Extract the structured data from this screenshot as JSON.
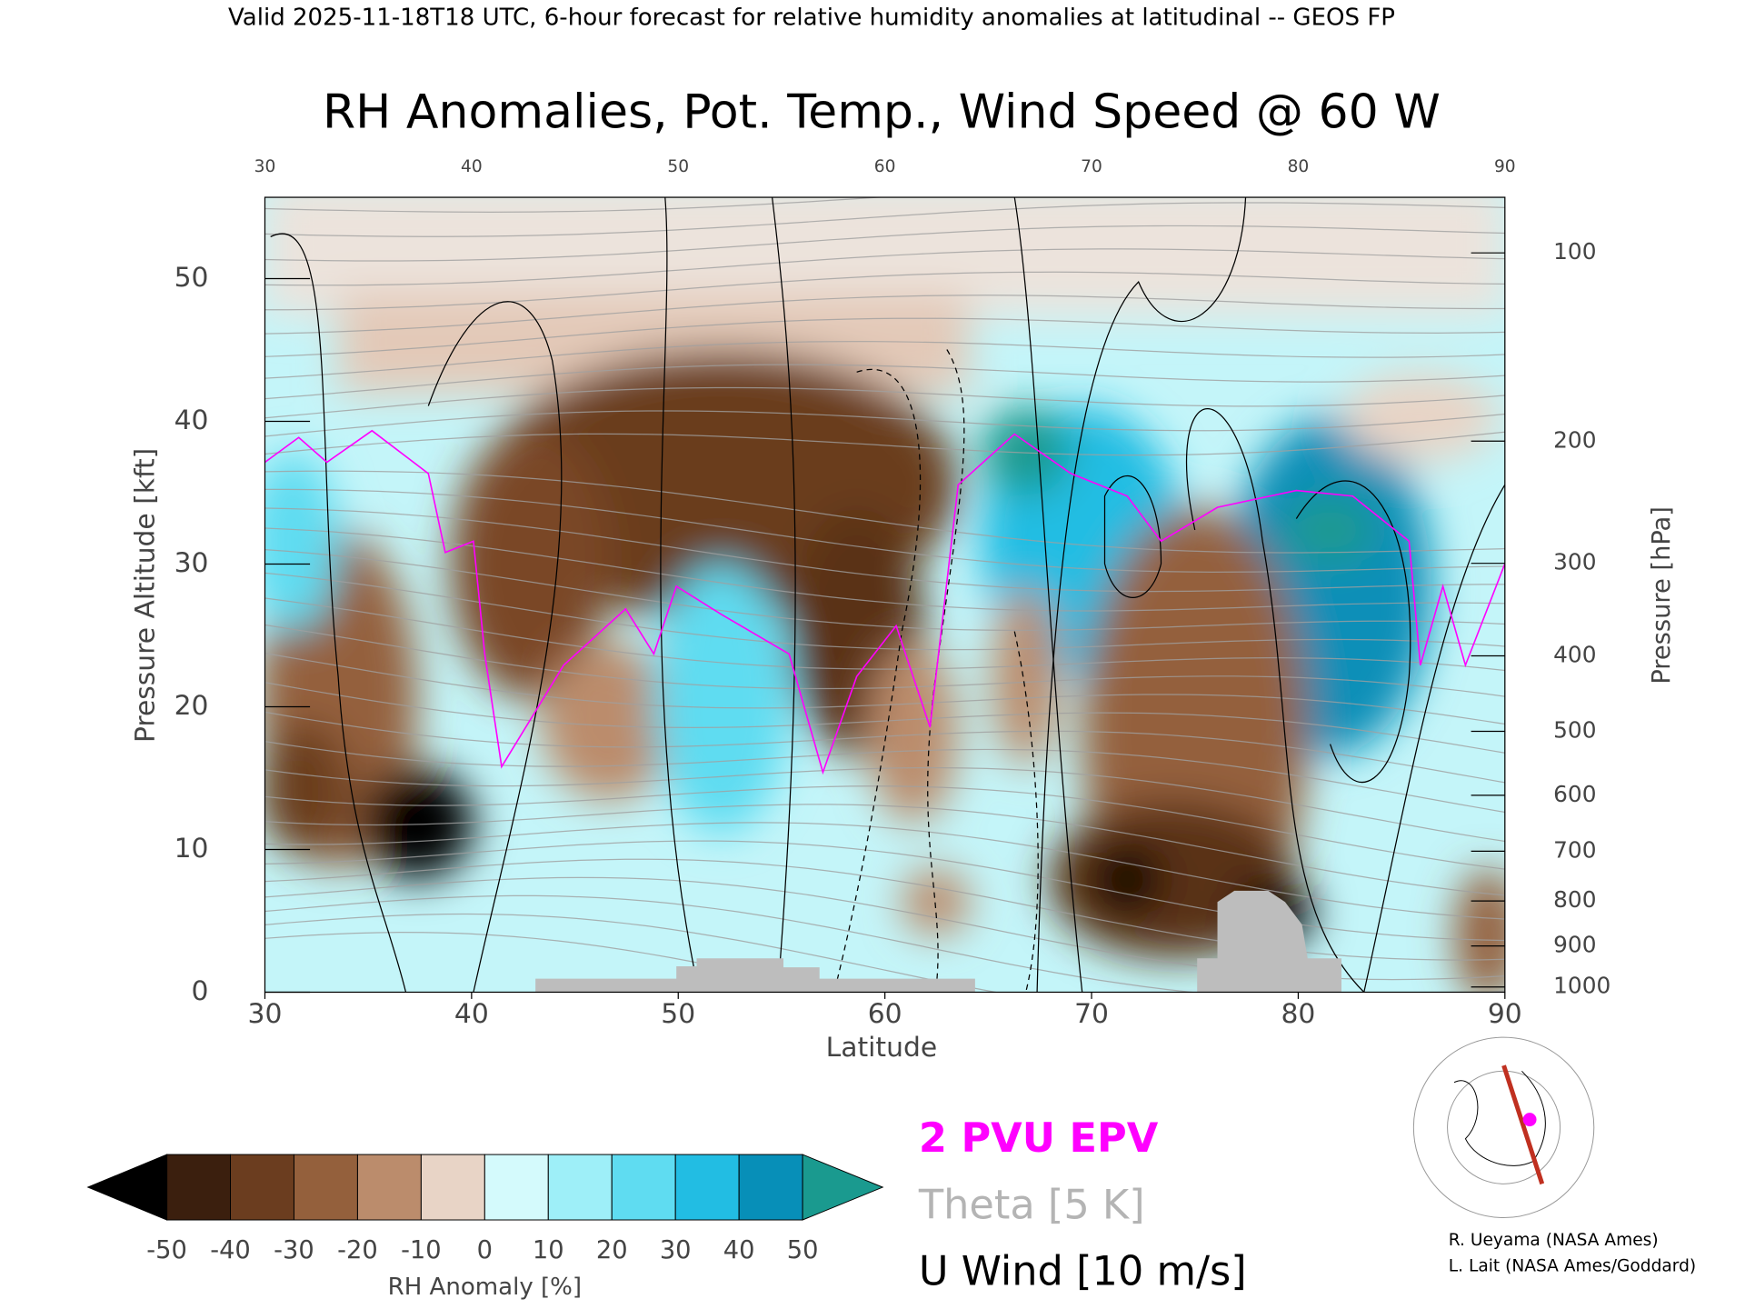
{
  "chart_data": {
    "type": "cross-section",
    "header": "Valid 2025-11-18T18 UTC, 6-hour forecast for relative humidity anomalies at latitudinal -- GEOS FP",
    "title": "RH Anomalies, Pot. Temp., Wind Speed @ 60 W",
    "xlabel": "Latitude",
    "ylabel": "Pressure Altitude [kft]",
    "y2label": "Pressure [hPa]",
    "xlim": [
      30,
      90
    ],
    "xticks": [
      30,
      40,
      50,
      60,
      70,
      80,
      90
    ],
    "ylim": [
      0,
      55.7
    ],
    "yticks": [
      0,
      10,
      20,
      30,
      40,
      50
    ],
    "y2ticks": [
      100,
      200,
      300,
      400,
      500,
      600,
      700,
      800,
      900,
      1000
    ],
    "colorbar": {
      "label": "RH Anomaly [%]",
      "ticks": [
        -50,
        -40,
        -30,
        -20,
        -10,
        0,
        10,
        20,
        30,
        40,
        50
      ],
      "colors": [
        "#3b1f0e",
        "#6b3d1f",
        "#94603c",
        "#bb8c6c",
        "#e8d4c6",
        "#d4fafc",
        "#9eeff8",
        "#5fdcf1",
        "#22bde3",
        "#078fb8"
      ],
      "under_color": "#000000",
      "over_color": "#1a9a8f"
    },
    "legend": [
      {
        "name": "2 PVU EPV",
        "color": "#ff00ff"
      },
      {
        "name": "Theta [5 K]",
        "color": "#b4b4b4"
      },
      {
        "name": "U Wind [10 m/s]",
        "color": "#000000"
      }
    ],
    "credits": [
      "R. Ueyama (NASA Ames)",
      "L. Lait (NASA Ames/Goddard)"
    ]
  }
}
